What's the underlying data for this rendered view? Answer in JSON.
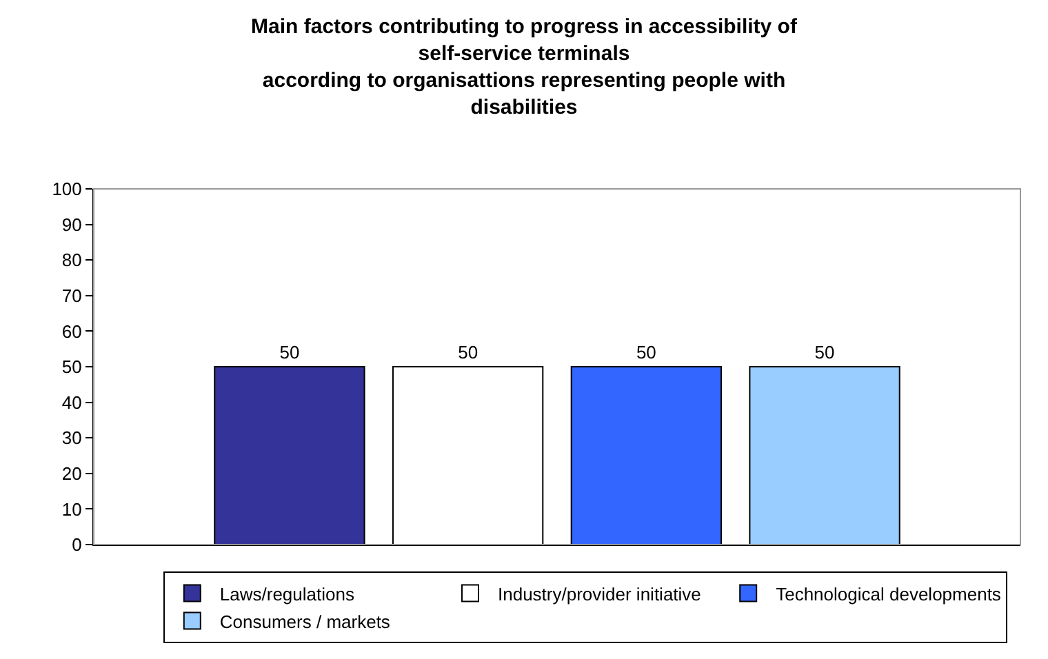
{
  "chart_data": {
    "type": "bar",
    "title": "Main factors contributing to progress in accessibility of self-service terminals\naccording to organisattions representing people with disabilities",
    "categories": [
      null
    ],
    "series": [
      {
        "name": "Laws/regulations",
        "color": "#333399",
        "values": [
          50
        ]
      },
      {
        "name": "Industry/provider initiative",
        "color": "#ffffff",
        "values": [
          50
        ]
      },
      {
        "name": "Technological developments",
        "color": "#3366ff",
        "values": [
          50
        ]
      },
      {
        "name": "Consumers / markets",
        "color": "#99ccff",
        "values": [
          50
        ]
      }
    ],
    "ylim": [
      0,
      100
    ],
    "yticks": [
      0,
      10,
      20,
      30,
      40,
      50,
      60,
      70,
      80,
      90,
      100
    ],
    "data_labels": true,
    "grid": false,
    "legend": "bottom"
  }
}
